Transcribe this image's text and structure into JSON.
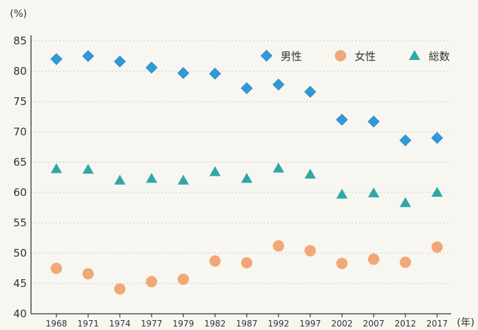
{
  "chart_data": {
    "type": "scatter",
    "y_unit_label": "(%)",
    "x_unit_label": "(年)",
    "ylim": [
      40,
      85
    ],
    "y_ticks": [
      40,
      45,
      50,
      55,
      60,
      65,
      70,
      75,
      80,
      85
    ],
    "categories": [
      "1968",
      "1971",
      "1974",
      "1977",
      "1979",
      "1982",
      "1987",
      "1992",
      "1997",
      "2002",
      "2007",
      "2012",
      "2017"
    ],
    "grid": "horizontal dotted",
    "legend_placement": "top-right",
    "series": [
      {
        "name": "男性",
        "marker": "diamond",
        "color": "#2e9bd6",
        "values": [
          82.0,
          82.5,
          81.6,
          80.6,
          79.7,
          79.6,
          77.2,
          77.8,
          76.6,
          72.0,
          71.7,
          68.6,
          69.0
        ]
      },
      {
        "name": "女性",
        "marker": "circle",
        "color": "#f0a878",
        "values": [
          47.5,
          46.6,
          44.1,
          45.3,
          45.7,
          48.7,
          48.4,
          51.2,
          50.4,
          48.3,
          49.0,
          48.5,
          51.0
        ]
      },
      {
        "name": "総数",
        "marker": "triangle",
        "color": "#2fa8a3",
        "values": [
          63.9,
          63.8,
          62.0,
          62.3,
          62.0,
          63.4,
          62.3,
          64.0,
          63.0,
          59.7,
          59.9,
          58.3,
          60.0
        ]
      }
    ]
  }
}
